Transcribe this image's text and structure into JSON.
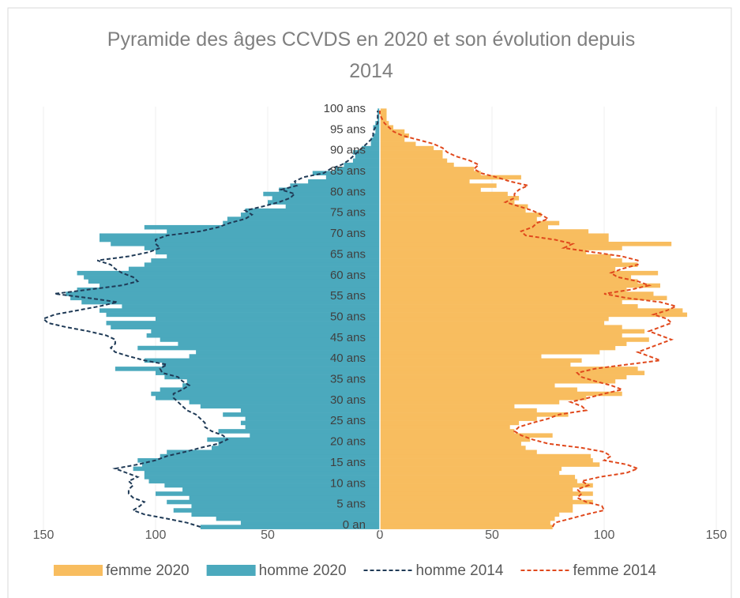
{
  "chart_data": {
    "type": "bar",
    "title": "Pyramide des âges CCVDS en 2020 et son évolution depuis 2014",
    "orientation": "horizontal",
    "categories": [
      "0 an",
      null,
      null,
      null,
      null,
      "5 ans",
      null,
      null,
      null,
      null,
      "10 ans",
      null,
      null,
      null,
      null,
      "15 ans",
      null,
      null,
      null,
      null,
      "20 ans",
      null,
      null,
      null,
      null,
      "25 ans",
      null,
      null,
      null,
      null,
      "30 ans",
      null,
      null,
      null,
      null,
      "35 ans",
      null,
      null,
      null,
      null,
      "40 ans",
      null,
      null,
      null,
      null,
      "45 ans",
      null,
      null,
      null,
      null,
      "50 ans",
      null,
      null,
      null,
      null,
      "55 ans",
      null,
      null,
      null,
      null,
      "60 ans",
      null,
      null,
      null,
      null,
      "65 ans",
      null,
      null,
      null,
      null,
      "70 ans",
      null,
      null,
      null,
      null,
      "75 ans",
      null,
      null,
      null,
      null,
      "80 ans",
      null,
      null,
      null,
      null,
      "85 ans",
      null,
      null,
      null,
      null,
      "90 ans",
      null,
      null,
      null,
      null,
      "95 ans",
      null,
      null,
      null,
      null,
      "100 ans"
    ],
    "xlim": [
      -150,
      150
    ],
    "xticks": [
      {
        "value": -150,
        "label": "150"
      },
      {
        "value": -100,
        "label": "100"
      },
      {
        "value": -50,
        "label": "50"
      },
      0,
      50,
      100,
      150
    ],
    "grid": true,
    "legend": "bottom",
    "series": [
      {
        "name": "femme 2020",
        "kind": "bar",
        "color": "#f8bd5f",
        "values": [
          77,
          76,
          78,
          80,
          86,
          86,
          95,
          86,
          95,
          86,
          95,
          88,
          87,
          80,
          81,
          98,
          95,
          94,
          70,
          65,
          63,
          67,
          77,
          60,
          58,
          62,
          70,
          84,
          70,
          60,
          80,
          92,
          108,
          88,
          78,
          105,
          110,
          118,
          115,
          85,
          90,
          72,
          98,
          105,
          110,
          120,
          108,
          118,
          108,
          100,
          102,
          137,
          135,
          115,
          108,
          128,
          122,
          110,
          125,
          115,
          112,
          124,
          105,
          115,
          108,
          103,
          92,
          108,
          130,
          102,
          102,
          93,
          75,
          80,
          70,
          72,
          65,
          66,
          60,
          62,
          57,
          45,
          52,
          40,
          63,
          45,
          42,
          33,
          30,
          28,
          28,
          24,
          16,
          11,
          13,
          11,
          6,
          4,
          3,
          3,
          3
        ]
      },
      {
        "name": "homme 2020",
        "kind": "bar",
        "color": "#4ba9bd",
        "values": [
          -80,
          -62,
          -73,
          -84,
          -92,
          -84,
          -95,
          -85,
          -100,
          -88,
          -96,
          -103,
          -105,
          -105,
          -110,
          -106,
          -108,
          -98,
          -95,
          -75,
          -72,
          -77,
          -58,
          -72,
          -60,
          -62,
          -60,
          -70,
          -62,
          -80,
          -85,
          -100,
          -102,
          -98,
          -88,
          -86,
          -96,
          -100,
          -118,
          -97,
          -105,
          -85,
          -82,
          -108,
          -90,
          -98,
          -104,
          -102,
          -120,
          -122,
          -100,
          -122,
          -125,
          -115,
          -133,
          -138,
          -140,
          -135,
          -125,
          -130,
          -132,
          -135,
          -112,
          -105,
          -102,
          -95,
          -100,
          -105,
          -120,
          -125,
          -125,
          -95,
          -105,
          -70,
          -68,
          -62,
          -60,
          -42,
          -50,
          -48,
          -52,
          -45,
          -40,
          -32,
          -24,
          -30,
          -20,
          -16,
          -12,
          -11,
          -12,
          -8,
          -4,
          -4,
          -3,
          -2,
          -3,
          -2,
          -1,
          -1,
          -1
        ]
      },
      {
        "name": "homme 2014",
        "kind": "line",
        "dashed": true,
        "color": "#1f3a56",
        "values": [
          -80,
          -86,
          -95,
          -105,
          -110,
          -107,
          -105,
          -110,
          -112,
          -112,
          -110,
          -112,
          -108,
          -113,
          -118,
          -108,
          -100,
          -95,
          -87,
          -80,
          -72,
          -68,
          -70,
          -75,
          -78,
          -78,
          -80,
          -82,
          -86,
          -88,
          -90,
          -92,
          -92,
          -88,
          -85,
          -88,
          -90,
          -97,
          -98,
          -95,
          -105,
          -112,
          -118,
          -120,
          -118,
          -118,
          -122,
          -130,
          -140,
          -148,
          -150,
          -145,
          -135,
          -125,
          -117,
          -130,
          -145,
          -130,
          -115,
          -108,
          -110,
          -115,
          -118,
          -120,
          -126,
          -112,
          -103,
          -98,
          -100,
          -100,
          -95,
          -80,
          -72,
          -67,
          -60,
          -57,
          -60,
          -52,
          -45,
          -40,
          -38,
          -44,
          -37,
          -38,
          -34,
          -25,
          -22,
          -17,
          -14,
          -12,
          -10,
          -8,
          -6,
          -4,
          -3,
          -3,
          -2,
          -1,
          -1,
          -1,
          -1
        ]
      },
      {
        "name": "femme 2014",
        "kind": "line",
        "dashed": true,
        "color": "#e0481c",
        "values": [
          77,
          78,
          85,
          92,
          100,
          99,
          92,
          88,
          90,
          88,
          93,
          90,
          98,
          110,
          115,
          110,
          100,
          103,
          100,
          90,
          75,
          68,
          63,
          60,
          62,
          68,
          75,
          80,
          92,
          90,
          85,
          93,
          100,
          108,
          103,
          96,
          90,
          88,
          96,
          110,
          125,
          120,
          115,
          120,
          125,
          130,
          125,
          120,
          125,
          130,
          128,
          122,
          128,
          132,
          125,
          110,
          100,
          112,
          120,
          115,
          106,
          103,
          108,
          115,
          115,
          108,
          95,
          82,
          86,
          78,
          65,
          63,
          68,
          70,
          75,
          72,
          68,
          62,
          56,
          60,
          60,
          62,
          66,
          58,
          52,
          45,
          42,
          44,
          40,
          34,
          30,
          28,
          24,
          17,
          10,
          6,
          4,
          2,
          1,
          0,
          0
        ]
      }
    ]
  }
}
